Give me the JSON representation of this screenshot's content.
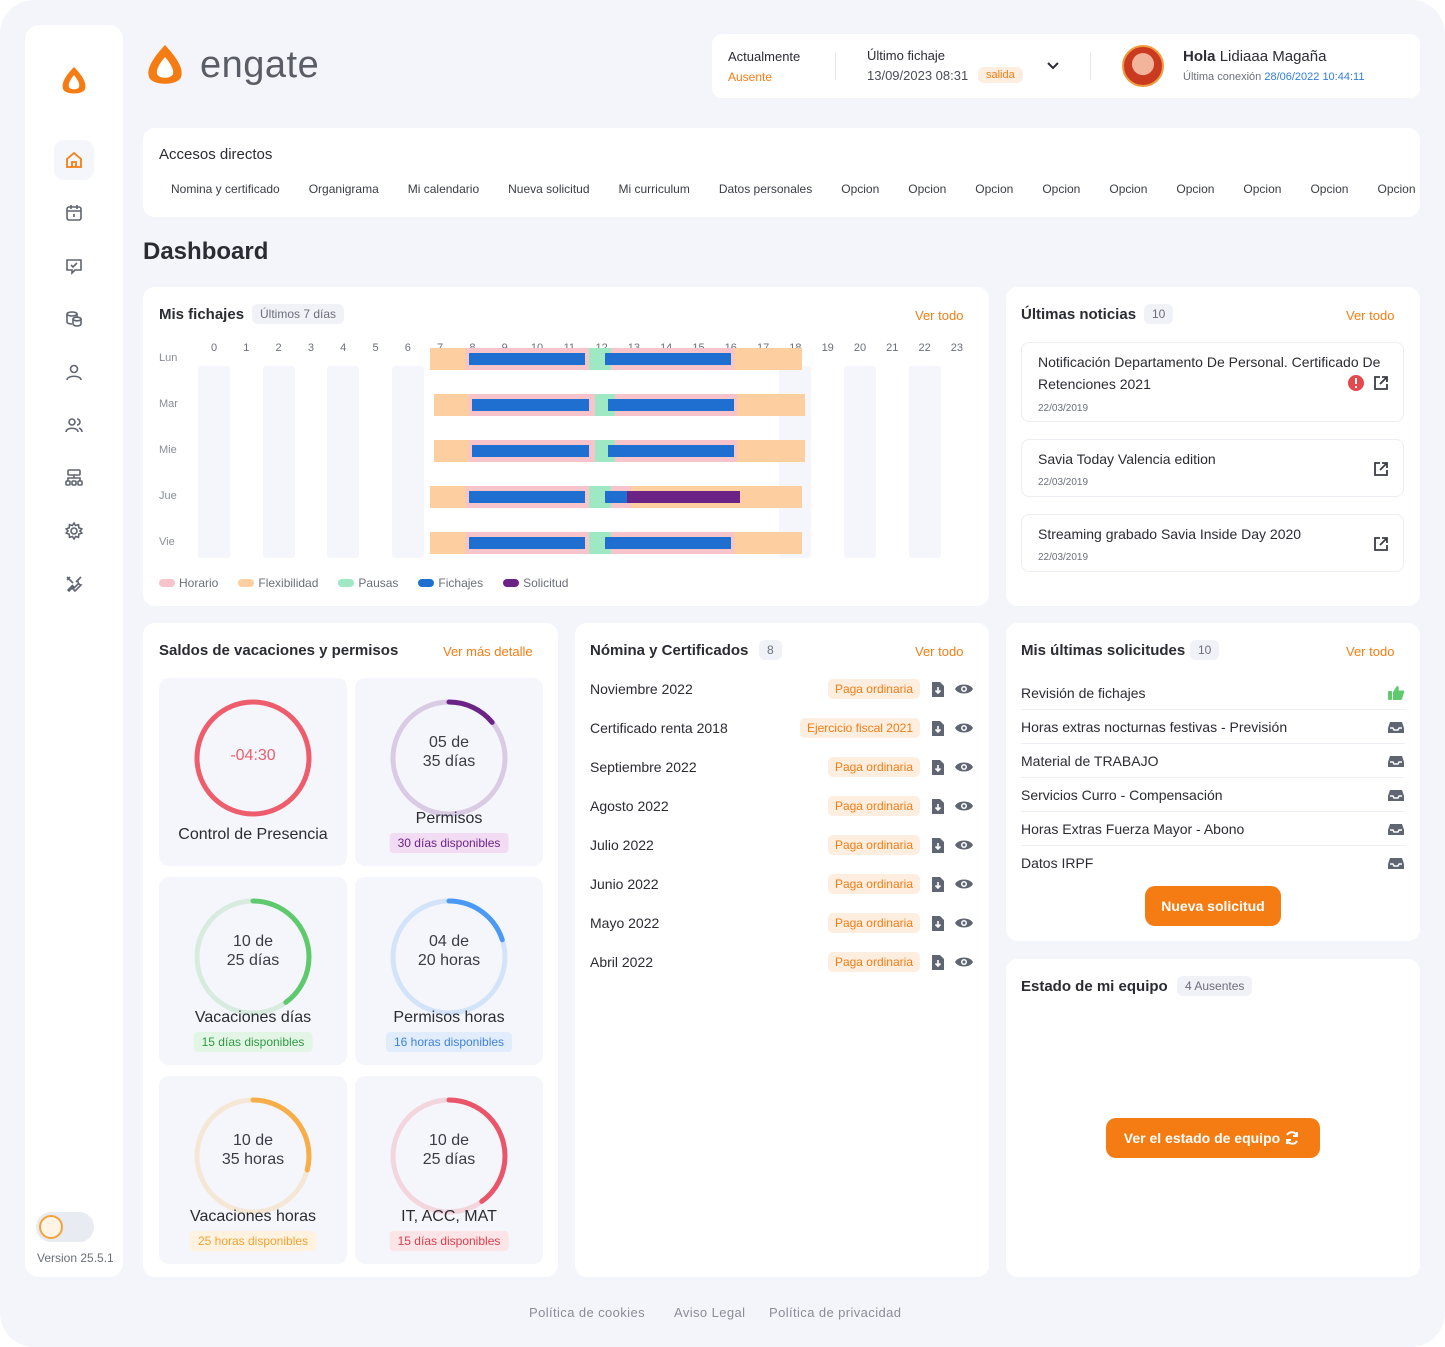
{
  "app": {
    "brand": "engate",
    "version": "Version 25.5.1"
  },
  "header": {
    "actualmente_label": "Actualmente",
    "actualmente_value": "Ausente",
    "ultimo_fichaje_label": "Último fichaje",
    "ultimo_fichaje_value": "13/09/2023 08:31",
    "ultimo_fichaje_tag": "salida",
    "greeting_bold": "Hola",
    "user_name": "Lidiaaa Magaña",
    "last_connection_label": "Última conexión",
    "last_connection_value": "28/06/2022 10:44:11"
  },
  "accesos": {
    "title": "Accesos directos",
    "links": [
      "Nomina y certificado",
      "Organigrama",
      "Mi calendario",
      "Nueva solicitud",
      "Mi curriculum",
      "Datos personales",
      "Opcion",
      "Opcion",
      "Opcion",
      "Opcion",
      "Opcion",
      "Opcion",
      "Opcion",
      "Opcion",
      "Opcion"
    ]
  },
  "dashboard_title": "Dashboard",
  "fichajes": {
    "title": "Mis fichajes",
    "range": "Últimos 7 días",
    "ver_todo": "Ver todo",
    "hours": [
      "0",
      "1",
      "2",
      "3",
      "4",
      "5",
      "6",
      "7",
      "8",
      "9",
      "10",
      "11",
      "12",
      "13",
      "14",
      "15",
      "16",
      "17",
      "18",
      "19",
      "20",
      "21",
      "22",
      "23"
    ],
    "days": [
      "Lun",
      "Mar",
      "Mie",
      "Jue",
      "Vie"
    ],
    "legend": [
      {
        "label": "Horario",
        "color": "#f8c4cc"
      },
      {
        "label": "Flexibilidad",
        "color": "#fdcfa0"
      },
      {
        "label": "Pausas",
        "color": "#9ee8c4"
      },
      {
        "label": "Fichajes",
        "color": "#1f6fd1"
      },
      {
        "label": "Solicitud",
        "color": "#6b2486"
      }
    ]
  },
  "noticias": {
    "title": "Últimas noticias",
    "count": "10",
    "ver_todo": "Ver todo",
    "items": [
      {
        "title": "Notificación Departamento De Personal. Certificado De Retenciones 2021",
        "date": "22/03/2019"
      },
      {
        "title": "Savia Today Valencia edition",
        "date": "22/03/2019"
      },
      {
        "title": "Streaming grabado Savia Inside Day 2020",
        "date": "22/03/2019"
      }
    ]
  },
  "saldos": {
    "title": "Saldos de vacaciones y permisos",
    "ver_mas": "Ver más detalle",
    "tiles": [
      {
        "line1": "-04:30",
        "line2": "",
        "label": "Control de Presencia",
        "badge": "",
        "color": "#ee5d6c",
        "progress": 1.0
      },
      {
        "line1": "05 de",
        "line2": "35 días",
        "label": "Permisos",
        "badge": "30 días disponibles",
        "color": "#6b2486",
        "progress": 0.14
      },
      {
        "line1": "10 de",
        "line2": "25 días",
        "label": "Vacaciones días",
        "badge": "15 días disponibles",
        "color": "#5fc96d",
        "progress": 0.4
      },
      {
        "line1": "04 de",
        "line2": "20 horas",
        "label": "Permisos horas",
        "badge": "16 horas disponibles",
        "color": "#4a9af5",
        "progress": 0.2
      },
      {
        "line1": "10 de",
        "line2": "35 horas",
        "label": "Vacaciones horas",
        "badge": "25 horas disponibles",
        "color": "#f7ad48",
        "progress": 0.29
      },
      {
        "line1": "10 de",
        "line2": "25 días",
        "label": "IT, ACC, MAT",
        "badge": "15 días disponibles",
        "color": "#e9566a",
        "progress": 0.4
      }
    ]
  },
  "nomina": {
    "title": "Nómina y Certificados",
    "count": "8",
    "ver_todo": "Ver todo",
    "rows": [
      {
        "name": "Noviembre 2022",
        "tag": "Paga ordinaria"
      },
      {
        "name": "Certificado renta 2018",
        "tag": "Ejercicio fiscal 2021"
      },
      {
        "name": "Septiembre 2022",
        "tag": "Paga ordinaria"
      },
      {
        "name": "Agosto 2022",
        "tag": "Paga ordinaria"
      },
      {
        "name": "Julio 2022",
        "tag": "Paga ordinaria"
      },
      {
        "name": "Junio 2022",
        "tag": "Paga ordinaria"
      },
      {
        "name": "Mayo 2022",
        "tag": "Paga ordinaria"
      },
      {
        "name": "Abril 2022",
        "tag": "Paga ordinaria"
      }
    ]
  },
  "solicitudes": {
    "title": "Mis últimas solicitudes",
    "count": "10",
    "ver_todo": "Ver todo",
    "rows": [
      {
        "name": "Revisión de fichajes",
        "icon": "thumbs-up-icon"
      },
      {
        "name": "Horas extras nocturnas festivas - Previsión",
        "icon": "inbox-icon"
      },
      {
        "name": "Material de TRABAJO",
        "icon": "inbox-icon"
      },
      {
        "name": "Servicios Curro - Compensación",
        "icon": "inbox-icon"
      },
      {
        "name": "Horas Extras Fuerza Mayor - Abono",
        "icon": "inbox-icon"
      },
      {
        "name": "Datos IRPF",
        "icon": "inbox-icon"
      }
    ],
    "button": "Nueva solicitud"
  },
  "equipo": {
    "title": "Estado de mi equipo",
    "count": "4 Ausentes",
    "button": "Ver el estado de equipo"
  },
  "footer": {
    "cookies": "Política de cookies",
    "legal": "Aviso Legal",
    "privacy": "Política de privacidad"
  },
  "colors": {
    "accent": "#f57c12",
    "link": "#2f7de1"
  }
}
